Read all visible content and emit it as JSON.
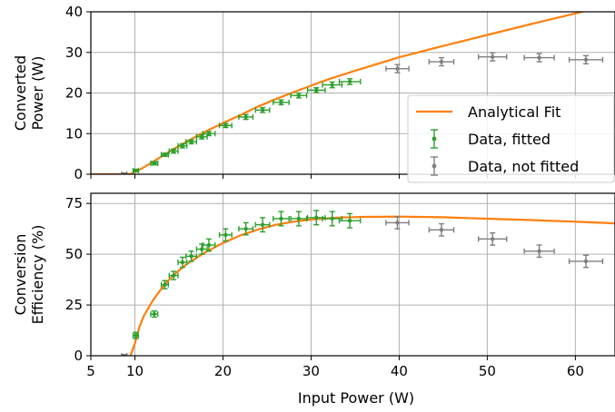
{
  "chart_data": [
    {
      "type": "line",
      "ylabel_lines": [
        "Converted",
        "Power (W)"
      ],
      "xlim": [
        5,
        64.5
      ],
      "ylim": [
        0,
        40
      ],
      "yticks": [
        0,
        10,
        20,
        30,
        40
      ],
      "grid": true,
      "legend_placement": "lower-right",
      "legend": [
        {
          "label": "Analytical Fit",
          "color": "#ff7f0e",
          "kind": "line"
        },
        {
          "label": "Data, fitted",
          "color": "#2ca02c",
          "kind": "errorbar"
        },
        {
          "label": "Data, not fitted",
          "color": "#7f7f7f",
          "kind": "errorbar"
        }
      ],
      "series": [
        {
          "name": "Analytical Fit",
          "color": "#ff7f0e",
          "x": [
            5,
            9.2,
            9.5,
            10,
            11,
            12,
            14,
            16,
            18,
            20,
            22,
            24,
            26,
            28,
            30,
            32,
            35,
            40,
            45,
            50,
            55,
            60,
            64.5
          ],
          "y": [
            0,
            0,
            0.1,
            0.5,
            1.7,
            3.0,
            5.7,
            8.2,
            10.5,
            12.6,
            14.6,
            16.7,
            18.5,
            20.2,
            21.8,
            23.4,
            25.5,
            28.8,
            31.6,
            34.3,
            37.0,
            39.6,
            42.0
          ]
        },
        {
          "name": "Data, fitted",
          "color": "#2ca02c",
          "x": [
            10.1,
            12.2,
            13.4,
            14.4,
            15.4,
            16.4,
            17.6,
            18.4,
            20.3,
            22.6,
            24.5,
            26.6,
            28.6,
            30.6,
            32.4,
            34.4
          ],
          "y": [
            0.9,
            2.7,
            4.8,
            5.7,
            7.0,
            8.0,
            9.2,
            10.0,
            12.0,
            14.1,
            15.8,
            17.7,
            19.4,
            20.7,
            22.0,
            22.8
          ],
          "xerr": [
            0.3,
            0.4,
            0.4,
            0.5,
            0.5,
            0.6,
            0.6,
            0.7,
            0.7,
            0.8,
            0.8,
            0.9,
            0.9,
            1.0,
            1.1,
            1.2
          ],
          "yerr": [
            0.3,
            0.4,
            0.4,
            0.5,
            0.5,
            0.5,
            0.5,
            0.5,
            0.5,
            0.6,
            0.6,
            0.6,
            0.6,
            0.6,
            0.7,
            0.7
          ]
        },
        {
          "name": "Data, not fitted",
          "color": "#7f7f7f",
          "x": [
            8.8,
            39.8,
            44.8,
            50.6,
            55.9,
            61.2
          ],
          "y": [
            0.0,
            26.0,
            27.7,
            28.9,
            28.7,
            28.2
          ],
          "xerr": [
            0.3,
            1.3,
            1.4,
            1.6,
            1.7,
            1.9
          ],
          "yerr": [
            0.3,
            1.0,
            1.0,
            1.0,
            1.0,
            1.0
          ]
        }
      ]
    },
    {
      "type": "line",
      "ylabel_lines": [
        "Conversion",
        "Efficiency (%)"
      ],
      "xlabel": "Input Power (W)",
      "xlim": [
        5,
        64.5
      ],
      "ylim": [
        0,
        80
      ],
      "xticks": [
        5,
        10,
        20,
        30,
        40,
        50,
        60
      ],
      "yticks": [
        0,
        25,
        50,
        75
      ],
      "grid": true,
      "series": [
        {
          "name": "Analytical Fit",
          "color": "#ff7f0e",
          "x": [
            9.5,
            10,
            10.5,
            11,
            12,
            13,
            14,
            15,
            16,
            18,
            20,
            22,
            24,
            26,
            28,
            30,
            33,
            36,
            40,
            45,
            50,
            55,
            60,
            64.5
          ],
          "y": [
            0,
            6,
            14,
            19.5,
            27,
            33,
            38,
            42,
            45.5,
            51,
            55.5,
            59.3,
            62.2,
            64.5,
            66.0,
            67.1,
            68.0,
            68.4,
            68.5,
            68.2,
            67.5,
            66.8,
            66.0,
            65.2
          ]
        },
        {
          "name": "Data, fitted",
          "color": "#2ca02c",
          "x": [
            10.1,
            12.2,
            13.4,
            14.4,
            15.4,
            16.4,
            17.6,
            18.4,
            20.3,
            22.6,
            24.5,
            26.6,
            28.6,
            30.6,
            32.4,
            34.4
          ],
          "y": [
            10,
            20.5,
            35,
            39.5,
            46,
            49,
            52.5,
            54.5,
            59.5,
            62.5,
            64.5,
            67.5,
            67.5,
            68.0,
            67.5,
            66.5
          ],
          "xerr": [
            0.3,
            0.4,
            0.4,
            0.5,
            0.5,
            0.6,
            0.6,
            0.7,
            0.7,
            0.8,
            0.8,
            0.9,
            0.9,
            1.0,
            1.1,
            1.2
          ],
          "yerr": [
            1.5,
            1.5,
            2.0,
            2.0,
            2.5,
            2.5,
            2.5,
            3.0,
            3.0,
            3.0,
            3.5,
            3.5,
            3.5,
            3.5,
            3.5,
            3.5
          ]
        },
        {
          "name": "Data, not fitted",
          "color": "#7f7f7f",
          "x": [
            8.8,
            39.8,
            44.8,
            50.6,
            55.9,
            61.2
          ],
          "y": [
            0,
            65.5,
            62,
            57.5,
            51.5,
            46.5
          ],
          "xerr": [
            0.3,
            1.3,
            1.4,
            1.6,
            1.7,
            1.9
          ],
          "yerr": [
            0.5,
            3.0,
            3.0,
            3.0,
            3.0,
            3.0
          ]
        }
      ]
    }
  ]
}
